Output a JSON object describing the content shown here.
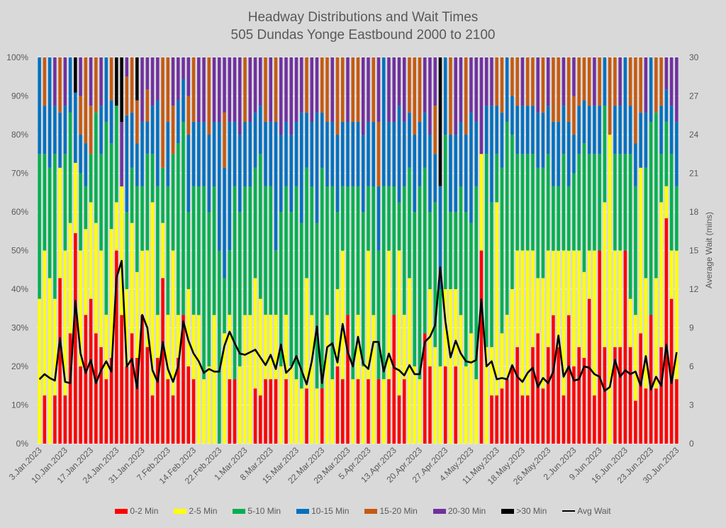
{
  "chart_data": {
    "type": "bar",
    "stacked": true,
    "title": "Headway Distributions and Wait Times",
    "subtitle": "505 Dundas  Yonge Eastbound 2000 to 2100",
    "xlabel": "",
    "ylabel_left": "",
    "ylabel_right": "Average Wait (mins)",
    "ylim_left": [
      0,
      100
    ],
    "ylim_right": [
      0,
      30
    ],
    "yticks_left": [
      "0%",
      "10%",
      "20%",
      "30%",
      "40%",
      "50%",
      "60%",
      "70%",
      "80%",
      "90%",
      "100%"
    ],
    "yticks_right": [
      "0",
      "3",
      "6",
      "9",
      "12",
      "15",
      "18",
      "21",
      "24",
      "27",
      "30"
    ],
    "grid": true,
    "legend_position": "bottom",
    "xtick_labels": [
      "3.Jan.2023",
      "10.Jan.2023",
      "17.Jan.2023",
      "24.Jan.2023",
      "31.Jan.2023",
      "7.Feb.2023",
      "14.Feb.2023",
      "22.Feb.2023",
      "1.Mar.2023",
      "8.Mar.2023",
      "15.Mar.2023",
      "22.Mar.2023",
      "29.Mar.2023",
      "5.Apr.2023",
      "13.Apr.2023",
      "20.Apr.2023",
      "27.Apr.2023",
      "4.May.2023",
      "11.May.2023",
      "18.May.2023",
      "26.May.2023",
      "2.Jun.2023",
      "9.Jun.2023",
      "16.Jun.2023",
      "23.Jun.2023",
      "30.Jun.2023"
    ],
    "xtick_every": 5,
    "series": [
      {
        "name": "0-2 Min",
        "color": "#ff0000"
      },
      {
        "name": "2-5 Min",
        "color": "#ffff00"
      },
      {
        "name": "5-10 Min",
        "color": "#00b050"
      },
      {
        "name": "10-15 Min",
        "color": "#0070c0"
      },
      {
        "name": "15-20 Min",
        "color": "#c55a11"
      },
      {
        "name": "20-30 Min",
        "color": "#7030a0"
      },
      {
        "name": ">30 Min",
        "color": "#000000"
      }
    ],
    "line_series": {
      "name": "Avg Wait",
      "color": "#000000",
      "axis": "right"
    },
    "bars": [
      [
        0,
        37.5,
        37.5,
        25,
        0,
        0,
        0,
        5.0
      ],
      [
        12.5,
        37.5,
        25,
        12.5,
        12.5,
        0,
        0,
        5.4
      ],
      [
        0,
        42.9,
        28.6,
        28.6,
        0,
        0,
        0,
        5.1
      ],
      [
        12.5,
        25,
        37.5,
        12.5,
        0,
        12.5,
        0,
        4.9
      ],
      [
        42.9,
        28.6,
        0,
        14.3,
        14.3,
        0,
        0,
        8.2
      ],
      [
        12.5,
        37.5,
        25,
        12.5,
        0,
        12.5,
        0,
        4.8
      ],
      [
        28.6,
        28.6,
        28.6,
        14.3,
        0,
        0,
        0,
        4.7
      ],
      [
        54.5,
        18.2,
        0,
        18.2,
        0,
        0,
        9.1,
        11.1
      ],
      [
        20,
        30,
        20,
        10,
        10,
        10,
        0,
        7.0
      ],
      [
        33.3,
        22.2,
        11.1,
        11.1,
        22.2,
        0,
        0,
        5.5
      ],
      [
        37.5,
        25,
        12.5,
        0,
        12.5,
        12.5,
        0,
        6.5
      ],
      [
        28.6,
        28.6,
        28.6,
        0,
        14.3,
        0,
        0,
        4.7
      ],
      [
        25,
        25,
        25,
        12.5,
        0,
        12.5,
        0,
        5.7
      ],
      [
        16.7,
        16.7,
        50,
        16.7,
        0,
        0,
        0,
        6.4
      ],
      [
        22.2,
        33.3,
        22.2,
        11.1,
        11.1,
        0,
        0,
        5.6
      ],
      [
        50,
        12.5,
        25,
        0,
        0,
        0,
        12.5,
        12.9
      ],
      [
        33.3,
        33.3,
        0,
        0,
        0,
        16.7,
        16.7,
        14.2
      ],
      [
        20,
        20,
        20,
        25,
        10,
        5,
        0,
        6.0
      ],
      [
        28.6,
        28.6,
        14.3,
        14.3,
        14.3,
        0,
        0,
        6.6
      ],
      [
        22.2,
        22.2,
        22.2,
        11.1,
        11.1,
        0,
        11.1,
        4.3
      ],
      [
        33.3,
        16.7,
        16.7,
        16.7,
        0,
        16.7,
        0,
        10.0
      ],
      [
        25,
        25,
        25,
        8.3,
        8.3,
        8.3,
        0,
        9.0
      ],
      [
        12.5,
        50,
        12.5,
        12.5,
        0,
        12.5,
        0,
        5.7
      ],
      [
        22.2,
        11.1,
        33.3,
        22.2,
        0,
        11.1,
        0,
        4.8
      ],
      [
        42.9,
        14.3,
        14.3,
        0,
        28.6,
        0,
        0,
        7.9
      ],
      [
        16.7,
        16.7,
        33.3,
        16.7,
        16.7,
        0,
        0,
        5.8
      ],
      [
        12.5,
        37.5,
        25,
        0,
        12.5,
        12.5,
        0,
        4.8
      ],
      [
        22.2,
        11.1,
        44.4,
        11.1,
        0,
        11.1,
        0,
        6.0
      ],
      [
        33.3,
        0,
        50,
        11.1,
        0,
        5.6,
        0,
        9.5
      ],
      [
        20,
        20,
        20,
        20,
        10,
        10,
        0,
        8.0
      ],
      [
        16.7,
        16.7,
        33.3,
        16.7,
        16.7,
        0,
        0,
        7.0
      ],
      [
        0,
        33.3,
        33.3,
        16.7,
        0,
        16.7,
        0,
        6.4
      ],
      [
        0,
        16.7,
        50,
        16.7,
        0,
        16.7,
        0,
        5.5
      ],
      [
        0,
        20,
        40,
        20,
        20,
        0,
        0,
        5.8
      ],
      [
        0,
        33.3,
        33.3,
        16.7,
        0,
        16.7,
        0,
        5.6
      ],
      [
        0,
        0,
        50,
        33.3,
        0,
        16.7,
        0,
        5.6
      ],
      [
        0,
        28.6,
        14.3,
        28.6,
        14.3,
        14.3,
        0,
        7.6
      ],
      [
        16.7,
        16.7,
        16.7,
        33.3,
        0,
        16.7,
        0,
        8.7
      ],
      [
        16.7,
        0,
        50,
        16.7,
        0,
        16.7,
        0,
        7.8
      ],
      [
        0,
        20,
        40,
        20,
        0,
        20,
        0,
        7.0
      ],
      [
        0,
        33.3,
        33.3,
        16.7,
        16.7,
        0,
        0,
        6.9
      ],
      [
        0,
        33.3,
        33.3,
        16.7,
        0,
        16.7,
        0,
        7.1
      ],
      [
        14.3,
        28.6,
        28.6,
        14.3,
        0,
        14.3,
        0,
        7.3
      ],
      [
        12.5,
        25,
        37.5,
        12.5,
        0,
        12.5,
        0,
        6.7
      ],
      [
        16.7,
        16.7,
        33.3,
        16.7,
        16.7,
        0,
        0,
        6.1
      ],
      [
        16.7,
        16.7,
        33.3,
        16.7,
        0,
        16.7,
        0,
        6.9
      ],
      [
        16.7,
        16.7,
        16.7,
        33.3,
        16.7,
        0,
        0,
        5.8
      ],
      [
        0,
        20,
        40,
        20,
        0,
        20,
        0,
        7.7
      ],
      [
        16.7,
        16.7,
        33.3,
        16.7,
        0,
        16.7,
        0,
        5.5
      ],
      [
        0,
        20,
        40,
        20,
        0,
        20,
        0,
        5.9
      ],
      [
        0,
        16.7,
        50,
        16.7,
        0,
        16.7,
        0,
        6.8
      ],
      [
        0,
        14.3,
        42.9,
        28.6,
        0,
        14.3,
        0,
        5.7
      ],
      [
        14.3,
        28.6,
        28.6,
        14.3,
        14.3,
        0,
        0,
        4.6
      ],
      [
        0,
        33.3,
        33.3,
        16.7,
        0,
        16.7,
        0,
        6.4
      ],
      [
        0,
        14.3,
        42.9,
        28.6,
        0,
        14.3,
        0,
        9.1
      ],
      [
        14.3,
        0,
        57.1,
        14.3,
        14.3,
        0,
        0,
        4.7
      ],
      [
        0,
        33.3,
        33.3,
        16.7,
        16.7,
        0,
        0,
        7.5
      ],
      [
        0,
        16.7,
        50,
        16.7,
        0,
        16.7,
        0,
        7.8
      ],
      [
        20,
        20,
        20,
        20,
        20,
        0,
        0,
        6.3
      ],
      [
        16.7,
        33.3,
        16.7,
        16.7,
        16.7,
        0,
        0,
        9.3
      ],
      [
        33.3,
        0,
        33.3,
        16.7,
        0,
        16.7,
        0,
        7.1
      ],
      [
        0,
        16.7,
        50,
        16.7,
        16.7,
        0,
        0,
        6.0
      ],
      [
        16.7,
        16.7,
        33.3,
        16.7,
        16.7,
        0,
        0,
        8.3
      ],
      [
        0,
        20,
        40,
        20,
        0,
        20,
        0,
        6.2
      ],
      [
        16.7,
        33.3,
        16.7,
        16.7,
        0,
        16.7,
        0,
        5.8
      ],
      [
        0,
        33.3,
        33.3,
        16.7,
        16.7,
        0,
        0,
        7.9
      ],
      [
        16.7,
        0,
        33.3,
        16.7,
        16.7,
        16.7,
        0,
        7.9
      ],
      [
        0,
        16.7,
        50,
        33.3,
        0,
        0,
        0,
        5.6
      ],
      [
        16.7,
        33.3,
        16.7,
        16.7,
        0,
        16.7,
        0,
        7.0
      ],
      [
        33.3,
        0,
        33.3,
        16.7,
        0,
        16.7,
        0,
        5.9
      ],
      [
        12.5,
        37.5,
        12.5,
        25,
        0,
        12.5,
        0,
        5.7
      ],
      [
        16.7,
        16.7,
        33.3,
        16.7,
        0,
        16.7,
        0,
        5.3
      ],
      [
        0,
        42.9,
        28.6,
        14.3,
        14.3,
        0,
        0,
        6.1
      ],
      [
        0,
        20,
        40,
        20,
        20,
        0,
        0,
        5.4
      ],
      [
        0,
        16.7,
        50,
        16.7,
        16.7,
        0,
        0,
        5.4
      ],
      [
        28.6,
        0,
        42.9,
        14.3,
        0,
        14.3,
        0,
        7.9
      ],
      [
        20,
        20,
        20,
        20,
        0,
        20,
        0,
        8.3
      ],
      [
        0,
        25,
        37.5,
        12.5,
        12.5,
        12.5,
        0,
        9.2
      ],
      [
        0,
        20,
        20,
        26.7,
        0,
        0,
        33.3,
        13.7
      ],
      [
        20,
        20,
        40,
        20,
        0,
        0,
        0,
        9.5
      ],
      [
        0,
        40,
        20,
        20,
        20,
        0,
        0,
        6.7
      ],
      [
        20,
        20,
        20,
        20,
        0,
        20,
        0,
        8.0
      ],
      [
        0,
        33.3,
        33.3,
        16.7,
        0,
        16.7,
        0,
        7.0
      ],
      [
        0,
        20,
        40,
        20,
        20,
        0,
        0,
        6.4
      ],
      [
        0,
        28.6,
        28.6,
        28.6,
        0,
        14.3,
        0,
        6.3
      ],
      [
        0,
        16.7,
        50,
        16.7,
        0,
        16.7,
        0,
        6.5
      ],
      [
        50,
        25,
        0,
        0,
        0,
        25,
        0,
        11.2
      ],
      [
        0,
        25,
        50,
        12.5,
        0,
        12.5,
        0,
        6.0
      ],
      [
        12.5,
        12.5,
        37.5,
        25,
        0,
        12.5,
        0,
        6.4
      ],
      [
        12.5,
        50,
        12.5,
        12.5,
        12.5,
        0,
        0,
        5.0
      ],
      [
        14.3,
        14.3,
        42.9,
        14.3,
        14.3,
        0,
        0,
        5.1
      ],
      [
        16.7,
        16.7,
        50,
        16.7,
        0,
        0,
        0,
        5.0
      ],
      [
        20,
        20,
        40,
        10,
        10,
        0,
        0,
        6.1
      ],
      [
        25,
        25,
        25,
        12.5,
        12.5,
        0,
        0,
        5.2
      ],
      [
        12.5,
        37.5,
        25,
        12.5,
        0,
        12.5,
        0,
        4.8
      ],
      [
        12.5,
        37.5,
        25,
        12.5,
        12.5,
        0,
        0,
        5.5
      ],
      [
        25,
        25,
        25,
        12.5,
        12.5,
        0,
        0,
        5.9
      ],
      [
        28.6,
        14.3,
        28.6,
        14.3,
        0,
        14.3,
        0,
        4.4
      ],
      [
        14.3,
        28.6,
        28.6,
        14.3,
        14.3,
        0,
        0,
        5.1
      ],
      [
        25,
        25,
        25,
        12.5,
        0,
        12.5,
        0,
        4.7
      ],
      [
        33.3,
        16.7,
        16.7,
        16.7,
        16.7,
        0,
        0,
        5.6
      ],
      [
        25,
        25,
        16.7,
        16.7,
        16.7,
        0,
        0,
        8.4
      ],
      [
        12.5,
        37.5,
        25,
        12.5,
        0,
        12.5,
        0,
        5.2
      ],
      [
        33.3,
        16.7,
        16.7,
        16.7,
        16.7,
        0,
        0,
        6.0
      ],
      [
        20,
        30,
        20,
        10,
        10,
        10,
        0,
        4.9
      ],
      [
        25,
        25,
        25,
        12.5,
        12.5,
        0,
        0,
        5.0
      ],
      [
        22.2,
        22.2,
        33.3,
        11.1,
        11.1,
        0,
        0,
        6.0
      ],
      [
        37.5,
        12.5,
        25,
        12.5,
        12.5,
        0,
        0,
        5.9
      ],
      [
        12.5,
        37.5,
        25,
        12.5,
        0,
        12.5,
        0,
        5.4
      ],
      [
        50,
        0,
        25,
        12.5,
        12.5,
        0,
        0,
        5.2
      ],
      [
        25,
        37.5,
        25,
        12.5,
        0,
        0,
        0,
        4.1
      ],
      [
        0,
        80,
        0,
        0,
        20,
        0,
        0,
        4.4
      ],
      [
        25,
        25,
        25,
        12.5,
        12.5,
        0,
        0,
        6.5
      ],
      [
        25,
        25,
        25,
        12.5,
        0,
        12.5,
        0,
        5.2
      ],
      [
        50,
        0,
        25,
        25,
        0,
        0,
        0,
        5.7
      ],
      [
        25,
        12.5,
        37.5,
        12.5,
        12.5,
        0,
        0,
        5.4
      ],
      [
        11.1,
        22.2,
        33.3,
        11.1,
        22.2,
        0,
        0,
        5.6
      ],
      [
        28.6,
        42.9,
        0,
        14.3,
        14.3,
        0,
        0,
        4.5
      ],
      [
        14.3,
        28.6,
        28.6,
        14.3,
        0,
        14.3,
        0,
        6.8
      ],
      [
        33.3,
        0,
        50,
        16.7,
        0,
        0,
        0,
        4.2
      ],
      [
        14.3,
        28.6,
        42.9,
        0,
        14.3,
        0,
        0,
        5.2
      ],
      [
        25,
        37.5,
        12.5,
        12.5,
        12.5,
        0,
        0,
        4.5
      ],
      [
        58.3,
        8.3,
        16.7,
        8.3,
        0,
        8.3,
        0,
        7.7
      ],
      [
        37.5,
        12.5,
        25,
        12.5,
        0,
        12.5,
        0,
        4.7
      ],
      [
        16.7,
        33.3,
        16.7,
        16.7,
        0,
        16.7,
        0,
        7.1
      ]
    ]
  }
}
